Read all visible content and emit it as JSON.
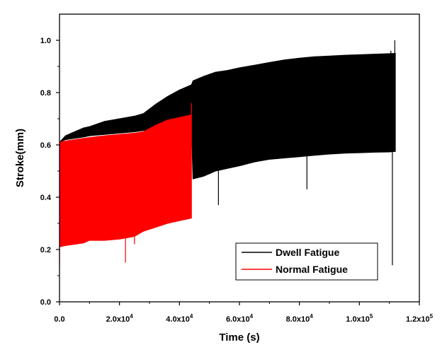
{
  "chart_data": {
    "type": "area",
    "title": "",
    "xlabel": "Time (s)",
    "ylabel": "Stroke(mm)",
    "xlim": [
      0,
      120000
    ],
    "ylim": [
      0,
      1.1
    ],
    "x_tick_labels": [
      "0.0",
      "2.0x10",
      "4.0x10",
      "6.0x10",
      "8.0x10",
      "1.0x10",
      "1.2x10"
    ],
    "x_tick_exponents": [
      "",
      "4",
      "4",
      "4",
      "4",
      "5",
      "5"
    ],
    "x_tick_values": [
      0,
      20000,
      40000,
      60000,
      80000,
      100000,
      120000
    ],
    "y_tick_labels": [
      "0.0",
      "0.2",
      "0.4",
      "0.6",
      "0.8",
      "1.0"
    ],
    "y_tick_values": [
      0,
      0.2,
      0.4,
      0.6,
      0.8,
      1.0
    ],
    "grid": false,
    "legend_position": "bottom-right",
    "series": [
      {
        "name": "Dwell Fatigue",
        "color": "#000000",
        "x": [
          0,
          2000,
          5000,
          8000,
          10000,
          15000,
          20000,
          25000,
          28000,
          32000,
          36000,
          40000,
          44000,
          44500,
          48000,
          52000,
          56000,
          60000,
          65000,
          70000,
          75000,
          80000,
          85000,
          90000,
          95000,
          100000,
          105000,
          110000,
          112000
        ],
        "upper": [
          0.61,
          0.635,
          0.65,
          0.665,
          0.67,
          0.69,
          0.7,
          0.71,
          0.72,
          0.755,
          0.785,
          0.81,
          0.83,
          0.845,
          0.862,
          0.878,
          0.885,
          0.895,
          0.905,
          0.915,
          0.925,
          0.932,
          0.937,
          0.94,
          0.943,
          0.945,
          0.947,
          0.949,
          0.95
        ],
        "lower": [
          0.61,
          0.62,
          0.625,
          0.63,
          0.635,
          0.64,
          0.645,
          0.65,
          0.655,
          0.66,
          0.665,
          0.67,
          0.67,
          0.47,
          0.48,
          0.5,
          0.51,
          0.52,
          0.535,
          0.545,
          0.55,
          0.555,
          0.56,
          0.565,
          0.568,
          0.57,
          0.572,
          0.573,
          0.575
        ],
        "spikes": [
          [
            53000,
            0.37
          ],
          [
            82500,
            0.43
          ],
          [
            111000,
            0.14
          ],
          [
            111800,
            1.0
          ],
          [
            110500,
            0.96
          ]
        ]
      },
      {
        "name": "Normal Fatigue",
        "color": "#ff0000",
        "x": [
          0,
          2000,
          5000,
          8000,
          10000,
          15000,
          20000,
          25000,
          28000,
          32000,
          36000,
          40000,
          44000
        ],
        "upper": [
          0.61,
          0.615,
          0.62,
          0.625,
          0.628,
          0.635,
          0.64,
          0.645,
          0.65,
          0.675,
          0.695,
          0.705,
          0.715
        ],
        "lower": [
          0.21,
          0.215,
          0.22,
          0.225,
          0.235,
          0.235,
          0.24,
          0.25,
          0.27,
          0.285,
          0.3,
          0.31,
          0.32
        ],
        "spikes": [
          [
            0,
            0.14
          ],
          [
            22000,
            0.15
          ],
          [
            25000,
            0.22
          ],
          [
            44000,
            0.76
          ]
        ]
      }
    ]
  }
}
